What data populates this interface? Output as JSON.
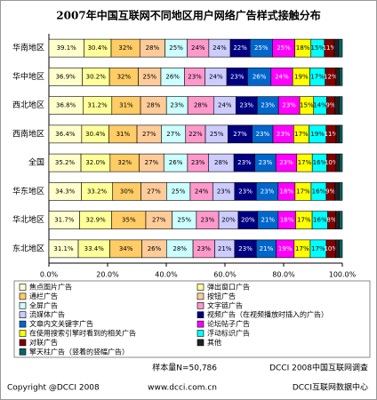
{
  "chart_data": {
    "type": "stacked_percent_bar",
    "title": "2007年中国互联网不同地区用户网络广告样式接触分布",
    "categories": [
      "华南地区",
      "华中地区",
      "西北地区",
      "西南地区",
      "全国",
      "华东地区",
      "华北地区",
      "东北地区"
    ],
    "xlim": [
      0,
      100
    ],
    "xticks": [
      {
        "value": 0,
        "label": "0.0%"
      },
      {
        "value": 20,
        "label": "20.0%"
      },
      {
        "value": 40,
        "label": "40.0%"
      },
      {
        "value": 60,
        "label": "60.0%"
      },
      {
        "value": 80,
        "label": "80.0%"
      },
      {
        "value": 100,
        "label": "100.0%"
      }
    ],
    "series": [
      {
        "name": "焦点图片广告",
        "color": "#FFFFCC",
        "values": [
          39.1,
          36.9,
          36.8,
          36.4,
          35.2,
          34.3,
          31.7,
          31.1
        ],
        "value_labels": [
          "39.1%",
          "36.9%",
          "36.8%",
          "36.4%",
          "35.2%",
          "34.3%",
          "31.7%",
          "31.1%"
        ]
      },
      {
        "name": "弹出窗口广告",
        "color": "#FFFF99",
        "values": [
          30.4,
          30.2,
          31.2,
          30.4,
          32.0,
          33.2,
          32.9,
          33.4
        ],
        "value_labels": [
          "30.4%",
          "30.2%",
          "31.2%",
          "30.4%",
          "32.0%",
          "33.2%",
          "32.9%",
          "33.4%"
        ]
      },
      {
        "name": "通栏广告",
        "color": "#FFCC66",
        "values": [
          32,
          32,
          31,
          31,
          32,
          30,
          35,
          34
        ],
        "value_labels": [
          "32%",
          "32%",
          "31%",
          "31%",
          "32%",
          "30%",
          "35%",
          "34%"
        ]
      },
      {
        "name": "按钮广告",
        "color": "#FFCC99",
        "values": [
          28,
          25,
          28,
          27,
          27,
          27,
          27,
          26
        ],
        "value_labels": [
          "28%",
          "25%",
          "28%",
          "27%",
          "27%",
          "27%",
          "27%",
          "26%"
        ]
      },
      {
        "name": "全屏广告",
        "color": "#CCFFFF",
        "values": [
          25,
          26,
          23,
          27,
          26,
          25,
          25,
          28
        ],
        "value_labels": [
          "25%",
          "26%",
          "23%",
          "27%",
          "26%",
          "25%",
          "25%",
          "28%"
        ]
      },
      {
        "name": "文字链广告",
        "color": "#FF99CC",
        "values": [
          24,
          23,
          28,
          22,
          23,
          24,
          23,
          23
        ],
        "value_labels": [
          "24%",
          "23%",
          "28%",
          "22%",
          "23%",
          "24%",
          "23%",
          "23%"
        ]
      },
      {
        "name": "流媒体广告",
        "color": "#CCCCFF",
        "values": [
          24,
          24,
          24,
          25,
          28,
          23,
          20,
          21
        ],
        "value_labels": [
          "24%",
          "24%",
          "24%",
          "25%",
          "28%",
          "23%",
          "20%",
          "21%"
        ]
      },
      {
        "name": "视频广告（在视频播放时插入的广告）",
        "color": "#000080",
        "values": [
          22,
          23,
          23,
          27,
          23,
          23,
          20,
          23
        ],
        "value_labels": [
          "22%",
          "23%",
          "23%",
          "27%",
          "23%",
          "23%",
          "20%",
          "23%"
        ]
      },
      {
        "name": "文章内文关键字广告",
        "color": "#0066CC",
        "values": [
          25,
          26,
          23,
          23,
          23,
          23,
          21,
          21
        ],
        "value_labels": [
          "25%",
          "26%",
          "23%",
          "23%",
          "23%",
          "23%",
          "21%",
          "21%"
        ]
      },
      {
        "name": "论坛帖子广告",
        "color": "#FF00FF",
        "values": [
          25,
          24,
          23,
          23,
          23,
          18,
          18,
          19
        ],
        "value_labels": [
          "25%",
          "24%",
          "23%",
          "23%",
          "23%",
          "18%",
          "18%",
          "19%"
        ]
      },
      {
        "name": "在使用搜索引擎时看到的相关广告",
        "color": "#FFFF00",
        "values": [
          18,
          19,
          15,
          17,
          17,
          17,
          17,
          17
        ],
        "value_labels": [
          "18%",
          "19%",
          "15%",
          "17%",
          "17%",
          "17%",
          "17%",
          "17%"
        ]
      },
      {
        "name": "浮动标识广告",
        "color": "#00FFFF",
        "values": [
          15,
          17,
          14,
          19,
          16,
          16,
          16,
          17
        ],
        "value_labels": [
          "15%",
          "17%",
          "14%",
          "19%",
          "16%",
          "16%",
          "16%",
          "17%"
        ]
      },
      {
        "name": "对联广告",
        "color": "#800000",
        "values": [
          11,
          12,
          9,
          11,
          10,
          9,
          8,
          10
        ],
        "value_labels": [
          "11%",
          "12%",
          "9%",
          "11%",
          "10%",
          "9%",
          "8%",
          "10%"
        ]
      },
      {
        "name": "其他",
        "color": "#222222",
        "values": [
          5,
          4,
          5,
          4,
          4,
          5,
          4,
          4
        ],
        "value_labels": [
          null,
          null,
          null,
          null,
          null,
          null,
          null,
          null
        ]
      },
      {
        "name": "擎天柱广告（竖着的竖幅广告）",
        "color": "#006666",
        "values": [
          4,
          3,
          3,
          3,
          3,
          3,
          3,
          3
        ],
        "value_labels": [
          null,
          null,
          null,
          null,
          null,
          null,
          null,
          null
        ]
      }
    ],
    "grid": false,
    "footer": {
      "sample": "样本量N=50,786",
      "survey": "DCCI 2008中国互联网调查",
      "copyright": "Copyright @DCCI 2008",
      "url": "www.dcci.com.cn",
      "org": "DCCI互联网数据中心"
    }
  }
}
